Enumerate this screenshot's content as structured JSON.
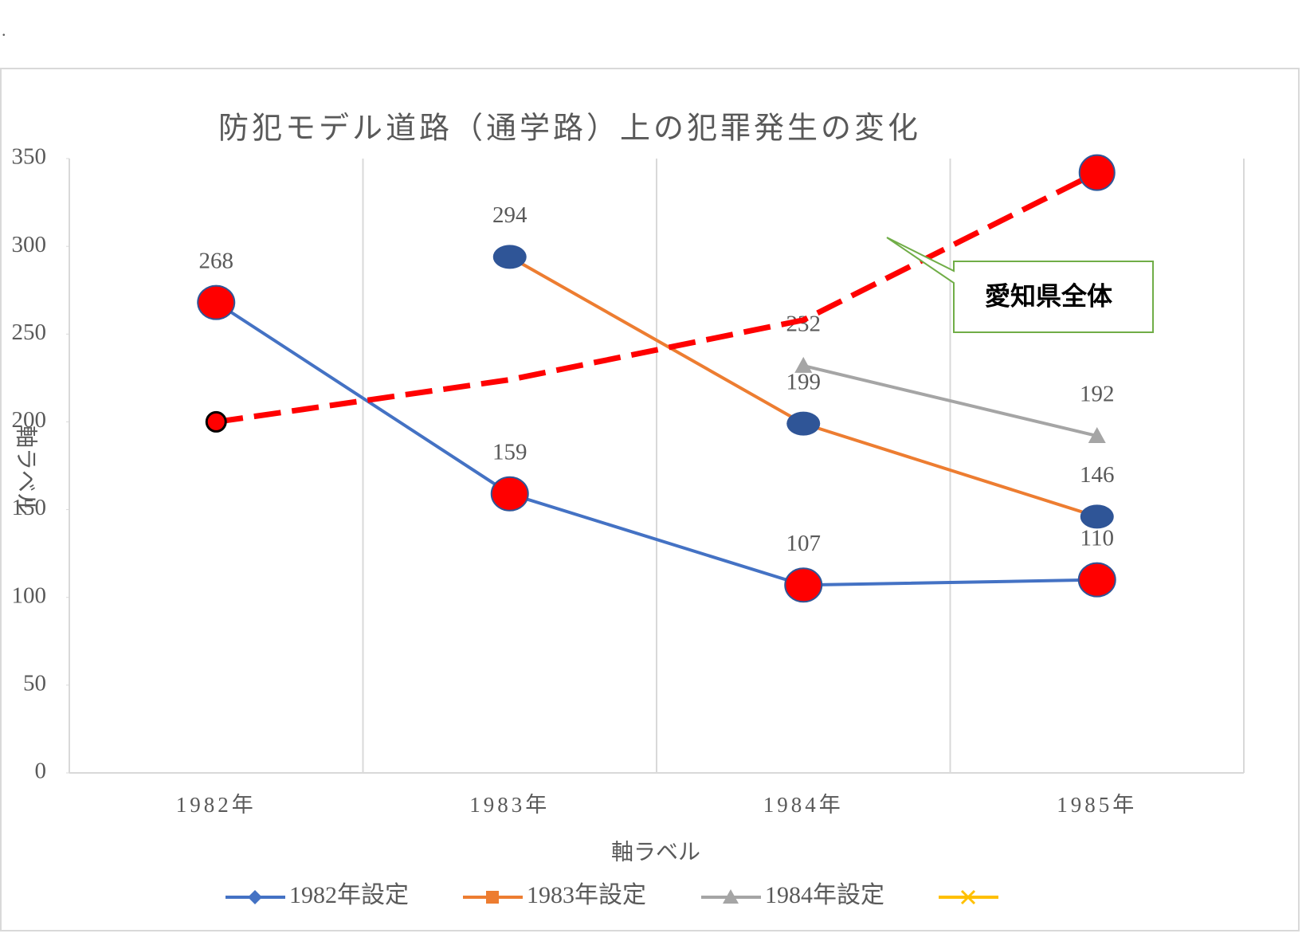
{
  "chart_data": {
    "type": "line",
    "title": "防犯モデル道路（通学路）上の犯罪発生の変化",
    "annotation": ".",
    "xlabel": "軸ラベル",
    "ylabel": "軸ラベル",
    "categories": [
      "1982年",
      "1983年",
      "1984年",
      "1985年"
    ],
    "ylim": [
      0,
      350
    ],
    "yticks": [
      0,
      50,
      100,
      150,
      200,
      250,
      300,
      350
    ],
    "grid": "x",
    "legend": "bottom",
    "series": [
      {
        "name": "1982年設定",
        "color": "#4472c4",
        "legend_marker": "diamond",
        "marker": "red-circle",
        "values": [
          268,
          159,
          107,
          110
        ]
      },
      {
        "name": "1983年設定",
        "color": "#ed7d31",
        "legend_marker": "square",
        "marker": "navy-ellipse",
        "values": [
          null,
          294,
          199,
          146
        ]
      },
      {
        "name": "1984年設定",
        "color": "#a5a5a5",
        "legend_marker": "triangle",
        "marker": "triangle",
        "values": [
          null,
          null,
          232,
          192
        ]
      },
      {
        "color": "#ffc000",
        "legend_marker": "x",
        "values": [
          null,
          null,
          null,
          null
        ]
      },
      {
        "name": "愛知県全体",
        "color": "#ff0000",
        "dashed": true,
        "in_legend": false,
        "values": [
          200,
          224,
          258,
          342
        ]
      }
    ]
  }
}
